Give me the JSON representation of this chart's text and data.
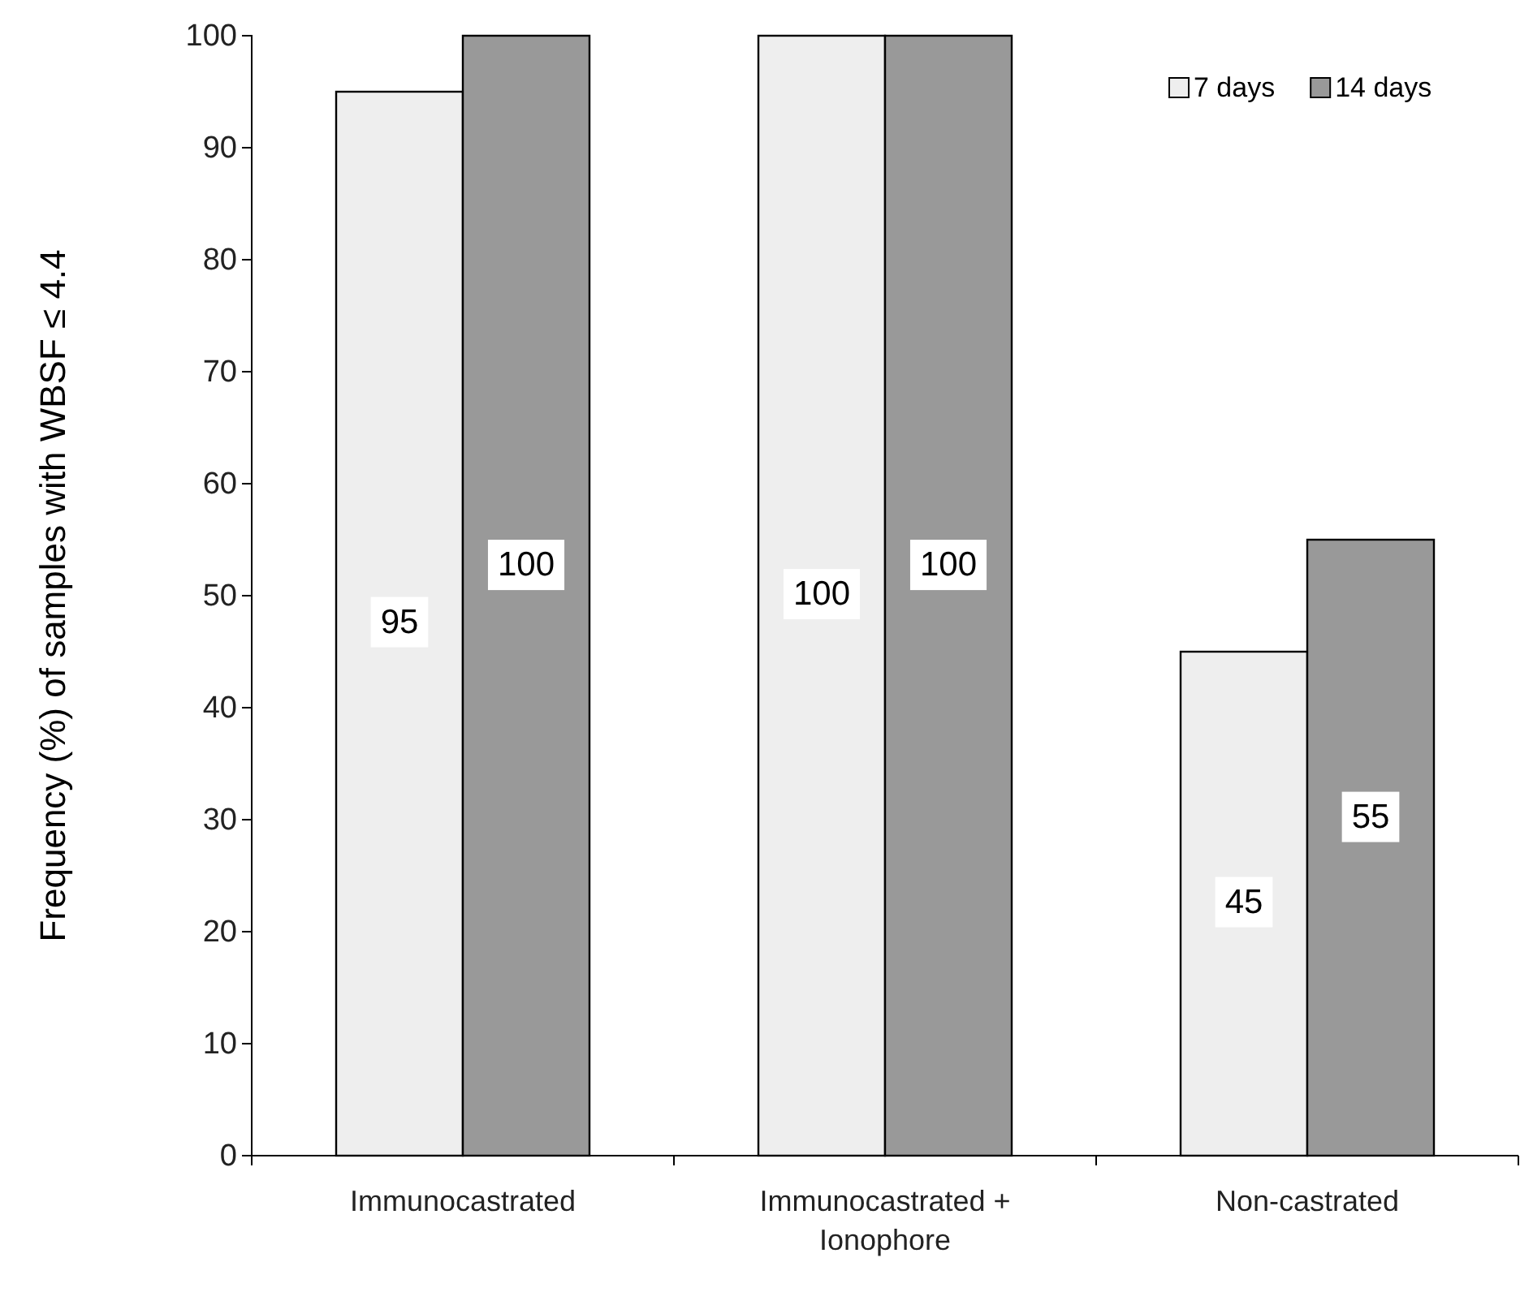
{
  "chart_data": {
    "type": "bar",
    "ylabel": "Frequency (%) of samples with WBSF ≤ 4.4",
    "categories": [
      "Immunocastrated",
      "Immunocastrated + Ionophore",
      "Non-castrated"
    ],
    "series": [
      {
        "name": "7 days",
        "color": "#eeeeee",
        "values": [
          95,
          100,
          45
        ]
      },
      {
        "name": "14 days",
        "color": "#999999",
        "values": [
          100,
          100,
          55
        ]
      }
    ],
    "ylim": [
      0,
      100
    ],
    "yticks": [
      0,
      10,
      20,
      30,
      40,
      50,
      60,
      70,
      80,
      90,
      100
    ],
    "grid": false,
    "legend": "top right",
    "data_labels": true
  }
}
